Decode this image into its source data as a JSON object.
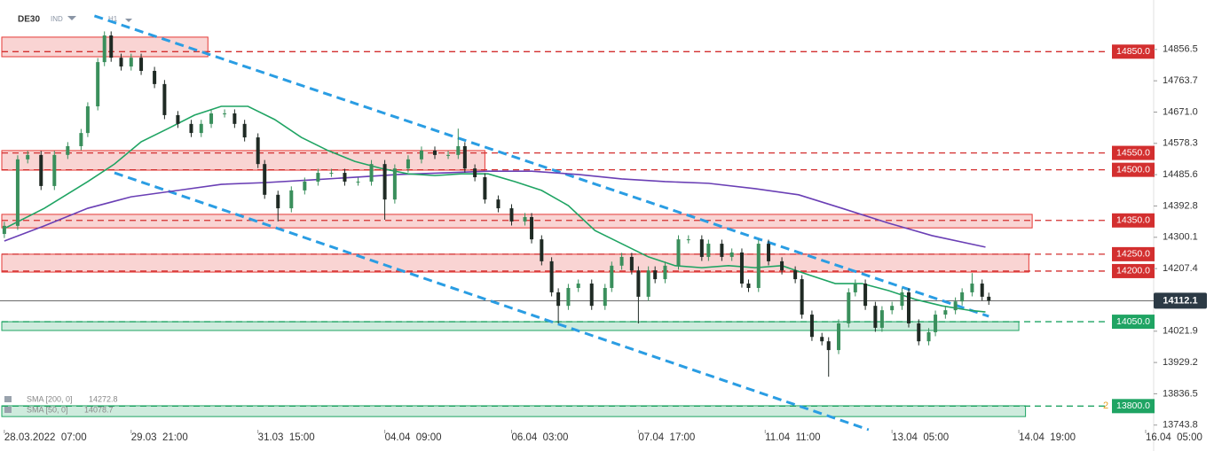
{
  "chart_data": {
    "type": "candlestick",
    "symbol": "DE30",
    "market": "IND",
    "timeframe": "H1",
    "xlim": [
      -1.3,
      344.4
    ],
    "ylim": [
      13730,
      15003
    ],
    "xticks": [
      {
        "value": 0,
        "label": "28.03.2022  07:00"
      },
      {
        "value": 38,
        "label": "29.03  21:00"
      },
      {
        "value": 76,
        "label": "31.03  15:00"
      },
      {
        "value": 114,
        "label": "04.04  09:00"
      },
      {
        "value": 152,
        "label": "06.04  03:00"
      },
      {
        "value": 190,
        "label": "07.04  17:00"
      },
      {
        "value": 228,
        "label": "11.04  11:00"
      },
      {
        "value": 266,
        "label": "13.04  05:00"
      },
      {
        "value": 304,
        "label": "14.04  19:00"
      },
      {
        "value": 342,
        "label": "16.04  05:00"
      }
    ],
    "yticks": [
      14856.5,
      14763.7,
      {
        "value": 14671,
        "label": "14671.0"
      },
      14578.3,
      14485.6,
      14392.8,
      14300.1,
      14207.4,
      14021.9,
      13929.2,
      13836.5,
      13743.8
    ],
    "up_color": "#3a8f5c",
    "down_color": "#1f2a24",
    "x": [
      0,
      4,
      7,
      11,
      15,
      19,
      23,
      25,
      28,
      30,
      32,
      35,
      38,
      41,
      45,
      48,
      52,
      56,
      59,
      62,
      66,
      69,
      72,
      76,
      78,
      82,
      86,
      90,
      94,
      98,
      102,
      106,
      110,
      114,
      117,
      121,
      125,
      129,
      133,
      136,
      138,
      141,
      144,
      148,
      152,
      156,
      158,
      161,
      164,
      166,
      169,
      172,
      176,
      180,
      182,
      185,
      188,
      190,
      193,
      195,
      198,
      202,
      205,
      209,
      211,
      215,
      218,
      221,
      223,
      226,
      229,
      233,
      237,
      239,
      242,
      245,
      247,
      250,
      253,
      255,
      258,
      261,
      263,
      266,
      269,
      271,
      274,
      277,
      279,
      282,
      285,
      287,
      290,
      293,
      295
    ],
    "open": [
      14310,
      14334,
      14531,
      14544,
      14452,
      14544,
      14570,
      14609,
      14688,
      14819,
      14898,
      14832,
      14806,
      14832,
      14793,
      14754,
      14662,
      14636,
      14609,
      14636,
      14667,
      14667,
      14636,
      14596,
      14517,
      14426,
      14386,
      14439,
      14465,
      14491,
      14491,
      14465,
      14465,
      14517,
      14412,
      14504,
      14531,
      14557,
      14544,
      14544,
      14570,
      14504,
      14478,
      14412,
      14386,
      14347,
      14360,
      14294,
      14229,
      14137,
      14097,
      14150,
      14163,
      14097,
      14150,
      14216,
      14242,
      14202,
      14124,
      14202,
      14176,
      14216,
      14294,
      14294,
      14242,
      14281,
      14242,
      14255,
      14163,
      14150,
      14281,
      14229,
      14202,
      14176,
      14071,
      14005,
      13992,
      13966,
      14045,
      14137,
      14163,
      14097,
      14032,
      14084,
      14097,
      14137,
      14045,
      13992,
      14019,
      14071,
      14084,
      14110,
      14137,
      14163,
      14124
    ],
    "high": [
      14346,
      14543,
      14556,
      14556,
      14556,
      14582,
      14621,
      14700,
      14831,
      14910,
      14910,
      14844,
      14844,
      14844,
      14805,
      14766,
      14674,
      14648,
      14648,
      14679,
      14679,
      14679,
      14648,
      14608,
      14529,
      14438,
      14451,
      14477,
      14503,
      14503,
      14503,
      14477,
      14529,
      14529,
      14516,
      14543,
      14569,
      14569,
      14556,
      14622,
      14582,
      14516,
      14490,
      14424,
      14398,
      14372,
      14372,
      14306,
      14241,
      14149,
      14162,
      14175,
      14175,
      14162,
      14228,
      14254,
      14254,
      14214,
      14214,
      14214,
      14228,
      14306,
      14306,
      14306,
      14293,
      14293,
      14267,
      14267,
      14175,
      14293,
      14293,
      14241,
      14214,
      14188,
      14083,
      14017,
      14004,
      14057,
      14149,
      14175,
      14175,
      14109,
      14096,
      14109,
      14149,
      14149,
      14057,
      14031,
      14083,
      14096,
      14122,
      14149,
      14194,
      14175,
      14136
    ],
    "low": [
      14298,
      14322,
      14519,
      14440,
      14440,
      14532,
      14558,
      14597,
      14676,
      14807,
      14820,
      14794,
      14794,
      14781,
      14742,
      14650,
      14624,
      14597,
      14597,
      14624,
      14655,
      14624,
      14584,
      14505,
      14414,
      14347,
      14374,
      14427,
      14453,
      14479,
      14453,
      14453,
      14453,
      14352,
      14400,
      14492,
      14519,
      14532,
      14532,
      14532,
      14492,
      14466,
      14400,
      14374,
      14335,
      14335,
      14282,
      14217,
      14125,
      14045,
      14085,
      14138,
      14085,
      14085,
      14138,
      14204,
      14190,
      14045,
      14112,
      14164,
      14164,
      14204,
      14282,
      14230,
      14230,
      14230,
      14230,
      14151,
      14138,
      14138,
      14217,
      14190,
      14164,
      14059,
      13993,
      13980,
      13887,
      13954,
      14033,
      14125,
      14085,
      14020,
      14020,
      14072,
      14085,
      14033,
      13980,
      13980,
      14007,
      14059,
      14072,
      14098,
      14125,
      14112,
      14100
    ],
    "close": [
      14334,
      14531,
      14544,
      14452,
      14544,
      14570,
      14609,
      14688,
      14819,
      14898,
      14832,
      14806,
      14832,
      14793,
      14754,
      14662,
      14636,
      14609,
      14636,
      14667,
      14667,
      14636,
      14596,
      14517,
      14426,
      14386,
      14439,
      14465,
      14491,
      14491,
      14465,
      14465,
      14517,
      14412,
      14504,
      14531,
      14557,
      14544,
      14544,
      14570,
      14504,
      14478,
      14412,
      14386,
      14347,
      14360,
      14294,
      14229,
      14137,
      14097,
      14150,
      14163,
      14097,
      14150,
      14216,
      14242,
      14202,
      14124,
      14202,
      14176,
      14216,
      14294,
      14294,
      14242,
      14281,
      14242,
      14255,
      14163,
      14150,
      14281,
      14229,
      14202,
      14176,
      14071,
      14005,
      13992,
      13966,
      14045,
      14137,
      14163,
      14097,
      14032,
      14084,
      14097,
      14137,
      14045,
      13992,
      14019,
      14071,
      14084,
      14110,
      14137,
      14163,
      14124,
      14112
    ],
    "series": [
      {
        "name": "SMA [200, 0]",
        "color": "#6a3fb5",
        "last_value": 14272.8,
        "x": [
          0,
          12,
          25,
          38,
          52,
          65,
          78,
          92,
          105,
          118,
          132,
          145,
          158,
          172,
          185,
          198,
          211,
          225,
          238,
          251,
          265,
          278,
          294
        ],
        "values": [
          14289,
          14334,
          14386,
          14420,
          14439,
          14457,
          14462,
          14470,
          14478,
          14486,
          14491,
          14496,
          14496,
          14486,
          14473,
          14465,
          14460,
          14444,
          14426,
          14386,
          14342,
          14305,
          14271
        ]
      },
      {
        "name": "SMA [50, 0]",
        "color": "#1fa463",
        "last_value": 14078.7,
        "x": [
          0,
          12,
          25,
          33,
          41,
          49,
          57,
          65,
          73,
          81,
          89,
          97,
          105,
          113,
          121,
          129,
          137,
          145,
          153,
          161,
          169,
          177,
          185,
          193,
          201,
          209,
          217,
          225,
          233,
          241,
          249,
          257,
          265,
          273,
          281,
          289,
          294
        ],
        "values": [
          14326,
          14386,
          14465,
          14517,
          14583,
          14622,
          14662,
          14688,
          14688,
          14649,
          14596,
          14557,
          14525,
          14504,
          14488,
          14483,
          14488,
          14488,
          14465,
          14439,
          14394,
          14320,
          14281,
          14242,
          14216,
          14210,
          14216,
          14210,
          14216,
          14189,
          14163,
          14163,
          14142,
          14116,
          14097,
          14084,
          14079
        ]
      }
    ],
    "zones": [
      {
        "low": 14835,
        "high": 14893,
        "x_end": 61,
        "color": "#e53935"
      },
      {
        "low": 14499,
        "high": 14557,
        "x_end": 144,
        "color": "#e53935"
      },
      {
        "low": 14328,
        "high": 14368,
        "x_end": 308,
        "color": "#e53935"
      },
      {
        "low": 14197,
        "high": 14250,
        "x_end": 307,
        "color": "#e53935"
      },
      {
        "low": 14024,
        "high": 14050,
        "x_end": 304,
        "color": "#1fa463"
      },
      {
        "low": 13769,
        "high": 13801,
        "x_end": 306,
        "color": "#1fa463"
      }
    ],
    "levels": [
      {
        "value": 14850,
        "label": "14850.0",
        "color": "#d32f2f"
      },
      {
        "value": 14550,
        "label": "14550.0",
        "color": "#d32f2f"
      },
      {
        "value": 14500,
        "label": "14500.0",
        "color": "#d32f2f"
      },
      {
        "value": 14350,
        "label": "14350.0",
        "color": "#d32f2f"
      },
      {
        "value": 14250,
        "label": "14250.0",
        "color": "#d32f2f"
      },
      {
        "value": 14200,
        "label": "14200.0",
        "color": "#d32f2f"
      },
      {
        "value": 14050,
        "label": "14050.0",
        "color": "#1fa463"
      },
      {
        "value": 13800,
        "label": "13800.0",
        "color": "#1fa463"
      }
    ],
    "level_marker": "2",
    "trendlines": [
      {
        "x": [
          27,
          295
        ],
        "y": [
          14956,
          14066
        ],
        "color": "#2a9de3"
      },
      {
        "x": [
          33,
          259
        ],
        "y": [
          14491,
          13730
        ],
        "color": "#2a9de3"
      }
    ],
    "current_price": 14112.1
  }
}
